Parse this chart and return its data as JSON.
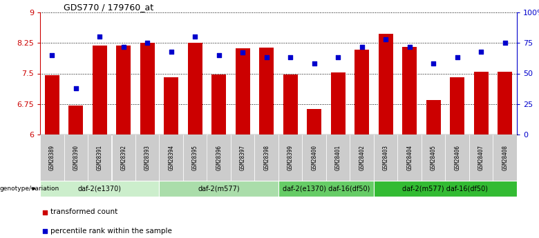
{
  "title": "GDS770 / 179760_at",
  "samples": [
    "GSM28389",
    "GSM28390",
    "GSM28391",
    "GSM28392",
    "GSM28393",
    "GSM28394",
    "GSM28395",
    "GSM28396",
    "GSM28397",
    "GSM28398",
    "GSM28399",
    "GSM28400",
    "GSM28401",
    "GSM28402",
    "GSM28403",
    "GSM28404",
    "GSM28405",
    "GSM28406",
    "GSM28407",
    "GSM28408"
  ],
  "bar_values": [
    7.45,
    6.72,
    8.18,
    8.19,
    8.25,
    7.4,
    8.25,
    7.48,
    8.12,
    8.14,
    7.47,
    6.62,
    7.52,
    8.08,
    8.47,
    8.16,
    6.85,
    7.4,
    7.55,
    7.55
  ],
  "dot_values": [
    65,
    38,
    80,
    72,
    75,
    68,
    80,
    65,
    67,
    63,
    63,
    58,
    63,
    72,
    78,
    72,
    58,
    63,
    68,
    75
  ],
  "bar_color": "#cc0000",
  "dot_color": "#0000cc",
  "ylim_left": [
    6,
    9
  ],
  "ylim_right": [
    0,
    100
  ],
  "yticks_left": [
    6,
    6.75,
    7.5,
    8.25,
    9
  ],
  "yticks_right": [
    0,
    25,
    50,
    75,
    100
  ],
  "ytick_labels_left": [
    "6",
    "6.75",
    "7.5",
    "8.25",
    "9"
  ],
  "ytick_labels_right": [
    "0",
    "25",
    "50",
    "75",
    "100%"
  ],
  "groups": [
    {
      "label": "daf-2(e1370)",
      "start": 0,
      "end": 4
    },
    {
      "label": "daf-2(m577)",
      "start": 5,
      "end": 9
    },
    {
      "label": "daf-2(e1370) daf-16(df50)",
      "start": 10,
      "end": 13
    },
    {
      "label": "daf-2(m577) daf-16(df50)",
      "start": 14,
      "end": 19
    }
  ],
  "group_colors": [
    "#cceecc",
    "#aaddaa",
    "#66cc66",
    "#33bb33"
  ],
  "legend_bar_label": "transformed count",
  "legend_dot_label": "percentile rank within the sample",
  "genotype_label": "genotype/variation"
}
